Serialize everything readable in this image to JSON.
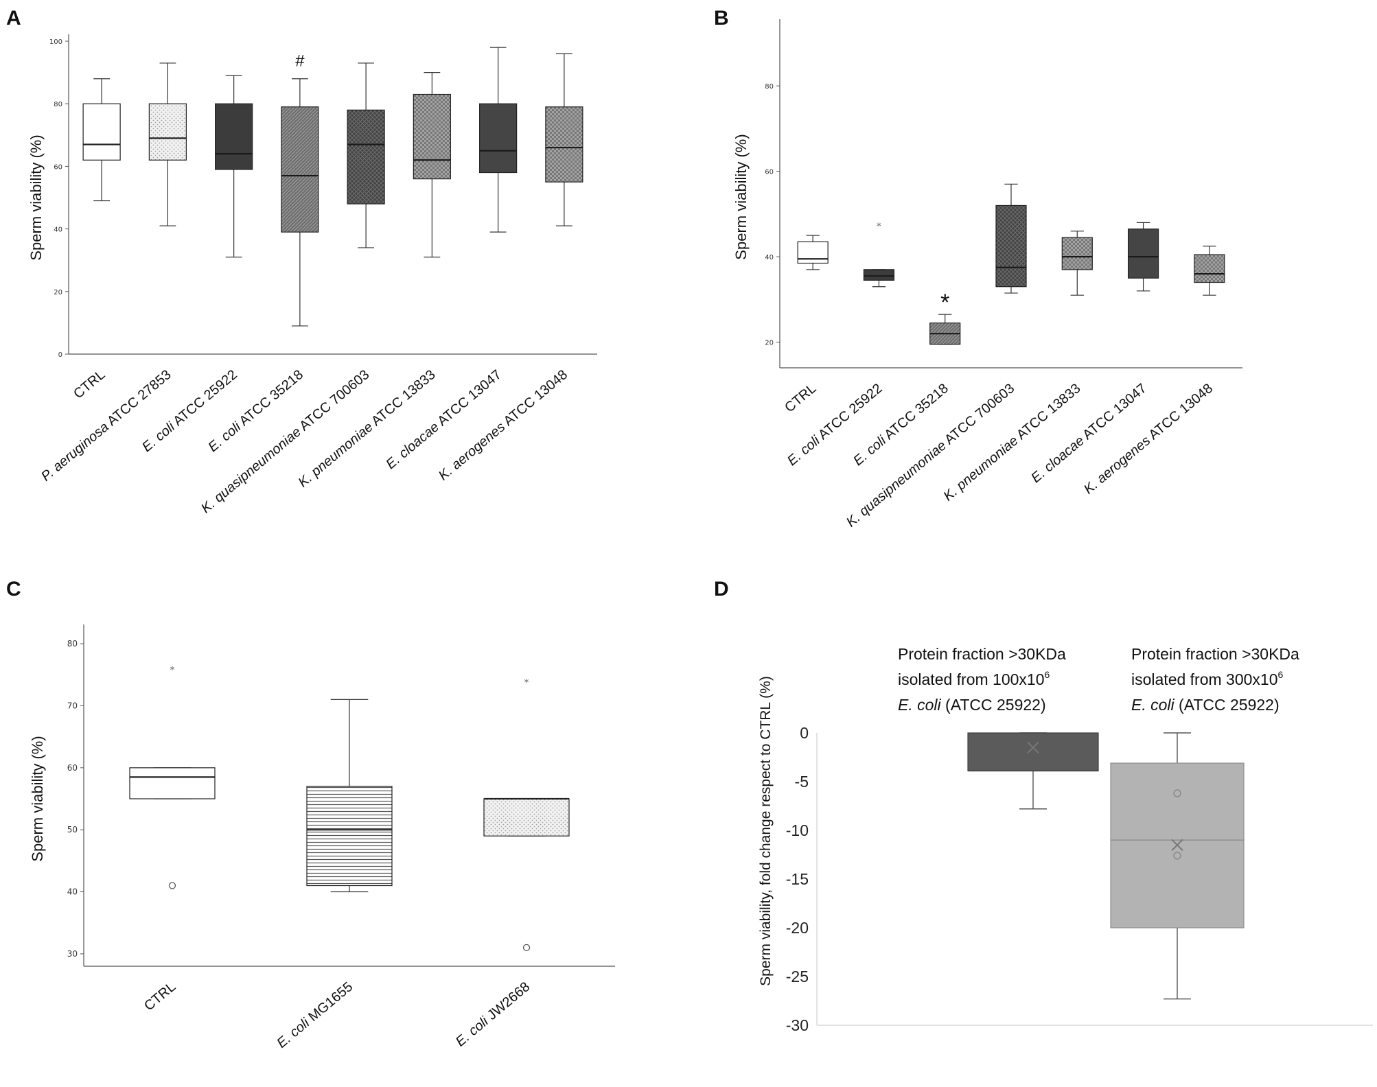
{
  "figure": {
    "panel_letters": [
      "A",
      "B",
      "C",
      "D"
    ]
  },
  "chart_data": [
    {
      "panel": "A",
      "type": "box",
      "ylabel": "Sperm viability (%)",
      "ylim": [
        0,
        100
      ],
      "yticks": [
        0,
        20,
        40,
        60,
        80,
        100
      ],
      "annotation": {
        "symbol": "#",
        "category_index": 3
      },
      "categories": [
        {
          "species": "",
          "strain": "CTRL"
        },
        {
          "species": "P. aeruginosa",
          "strain": " ATCC 27853"
        },
        {
          "species": "E. coli",
          "strain": " ATCC 25922"
        },
        {
          "species": "E. coli",
          "strain": " ATCC 35218"
        },
        {
          "species": "K. quasipneumoniae",
          "strain": " ATCC 700603"
        },
        {
          "species": "K. pneumoniae",
          "strain": "  ATCC 13833"
        },
        {
          "species": "E. cloacae",
          "strain": " ATCC 13047"
        },
        {
          "species": "K. aerogenes",
          "strain": " ATCC 13048"
        }
      ],
      "boxes": [
        {
          "min": 49,
          "q1": 62,
          "median": 67,
          "q3": 80,
          "max": 88,
          "fill": "#ffffff",
          "pattern": "none"
        },
        {
          "min": 41,
          "q1": 62,
          "median": 69,
          "q3": 80,
          "max": 93,
          "fill": "#eeeeee",
          "pattern": "dots"
        },
        {
          "min": 31,
          "q1": 59,
          "median": 64,
          "q3": 80,
          "max": 89,
          "fill": "#3c3c3c",
          "pattern": "none"
        },
        {
          "min": 9,
          "q1": 39,
          "median": 57,
          "q3": 79,
          "max": 88,
          "fill": "#6e6e6e",
          "pattern": "diag"
        },
        {
          "min": 34,
          "q1": 48,
          "median": 67,
          "q3": 78,
          "max": 93,
          "fill": "#474747",
          "pattern": "cross"
        },
        {
          "min": 31,
          "q1": 56,
          "median": 62,
          "q3": 83,
          "max": 90,
          "fill": "#7a7a7a",
          "pattern": "check"
        },
        {
          "min": 39,
          "q1": 58,
          "median": 65,
          "q3": 80,
          "max": 98,
          "fill": "#454545",
          "pattern": "none"
        },
        {
          "min": 41,
          "q1": 55,
          "median": 66,
          "q3": 79,
          "max": 96,
          "fill": "#8a8a8a",
          "pattern": "check"
        }
      ]
    },
    {
      "panel": "B",
      "type": "box",
      "ylabel": "Sperm viability (%)",
      "ylim": [
        14,
        94
      ],
      "yticks": [
        20,
        40,
        60,
        80
      ],
      "annotation": {
        "symbol": "*",
        "category_index": 2
      },
      "categories": [
        {
          "species": "",
          "strain": "CTRL"
        },
        {
          "species": "E. coli",
          "strain": " ATCC 25922"
        },
        {
          "species": "E. coli",
          "strain": " ATCC 35218"
        },
        {
          "species": "K. quasipneumoniae",
          "strain": " ATCC 700603"
        },
        {
          "species": "K. pneumoniae",
          "strain": "  ATCC 13833"
        },
        {
          "species": "E. cloacae",
          "strain": " ATCC 13047"
        },
        {
          "species": "K. aerogenes",
          "strain": " ATCC 13048"
        }
      ],
      "boxes": [
        {
          "min": 37,
          "q1": 38.5,
          "median": 39.5,
          "q3": 43.5,
          "max": 45,
          "fill": "#ffffff",
          "pattern": "none",
          "outliers": []
        },
        {
          "min": 33,
          "q1": 34.5,
          "median": 35.5,
          "q3": 37,
          "max": 37,
          "fill": "#3c3c3c",
          "pattern": "none",
          "outliers": [
            47.5
          ]
        },
        {
          "min": 19.5,
          "q1": 19.5,
          "median": 22,
          "q3": 24.5,
          "max": 26.5,
          "fill": "#777777",
          "pattern": "diag",
          "outliers": []
        },
        {
          "min": 31.5,
          "q1": 33,
          "median": 37.5,
          "q3": 52,
          "max": 57,
          "fill": "#474747",
          "pattern": "cross",
          "outliers": []
        },
        {
          "min": 31,
          "q1": 37,
          "median": 40,
          "q3": 44.5,
          "max": 46,
          "fill": "#7a7a7a",
          "pattern": "check",
          "outliers": []
        },
        {
          "min": 32,
          "q1": 35,
          "median": 40,
          "q3": 46.5,
          "max": 48,
          "fill": "#454545",
          "pattern": "none",
          "outliers": []
        },
        {
          "min": 31,
          "q1": 34,
          "median": 36,
          "q3": 40.5,
          "max": 42.5,
          "fill": "#8a8a8a",
          "pattern": "check",
          "outliers": []
        }
      ]
    },
    {
      "panel": "C",
      "type": "box",
      "ylabel": "Sperm viability (%)",
      "ylim": [
        28,
        82
      ],
      "yticks": [
        30,
        40,
        50,
        60,
        70,
        80
      ],
      "categories": [
        {
          "species": "",
          "strain": "CTRL"
        },
        {
          "species": "E. coli",
          "strain": " MG1655"
        },
        {
          "species": "E. coli",
          "strain": " JW2668"
        }
      ],
      "boxes": [
        {
          "min": 55,
          "q1": 55,
          "median": 58.5,
          "q3": 60,
          "max": 60,
          "fill": "#ffffff",
          "pattern": "none",
          "outliers": [
            {
              "value": 76,
              "marker": "*"
            },
            {
              "value": 41,
              "marker": "o"
            }
          ]
        },
        {
          "min": 40,
          "q1": 41,
          "median": 50,
          "q3": 57,
          "max": 71,
          "fill": "#ffffff",
          "pattern": "hlines",
          "outliers": []
        },
        {
          "min": 49,
          "q1": 49,
          "median": 55,
          "q3": 55,
          "max": 55,
          "fill": "#eeeeee",
          "pattern": "dots",
          "outliers": [
            {
              "value": 74,
              "marker": "*"
            },
            {
              "value": 31,
              "marker": "o"
            }
          ]
        }
      ]
    },
    {
      "panel": "D",
      "type": "box",
      "ylabel": "Sperm viability, fold change respect to CTRL (%)",
      "ylim": [
        -30,
        0
      ],
      "yticks": [
        0,
        -5,
        -10,
        -15,
        -20,
        -25,
        -30
      ],
      "series": [
        {
          "label_lines": [
            [
              "Protein fraction >30KDa"
            ],
            [
              "isolated from 100x10",
              "6"
            ],
            [
              "E. coli",
              "  (ATCC  25922)"
            ]
          ],
          "min": -7.8,
          "q1": -3.9,
          "median": -3.9,
          "q3": 0,
          "max": 0,
          "mean": -1.5,
          "points": [],
          "fill": "#5b5b5b",
          "stroke": "#3f3f3f"
        },
        {
          "label_lines": [
            [
              "Protein fraction  >30KDa"
            ],
            [
              "isolated from 300x10",
              "6"
            ],
            [
              "E. coli",
              "  (ATCC  25922)"
            ]
          ],
          "min": -27.3,
          "q1": -20,
          "median": -11,
          "q3": -3.1,
          "max": 0,
          "mean": -11.5,
          "points": [
            -6.2,
            -12.6
          ],
          "fill": "#b3b3b3",
          "stroke": "#8c8c8c"
        }
      ]
    }
  ]
}
